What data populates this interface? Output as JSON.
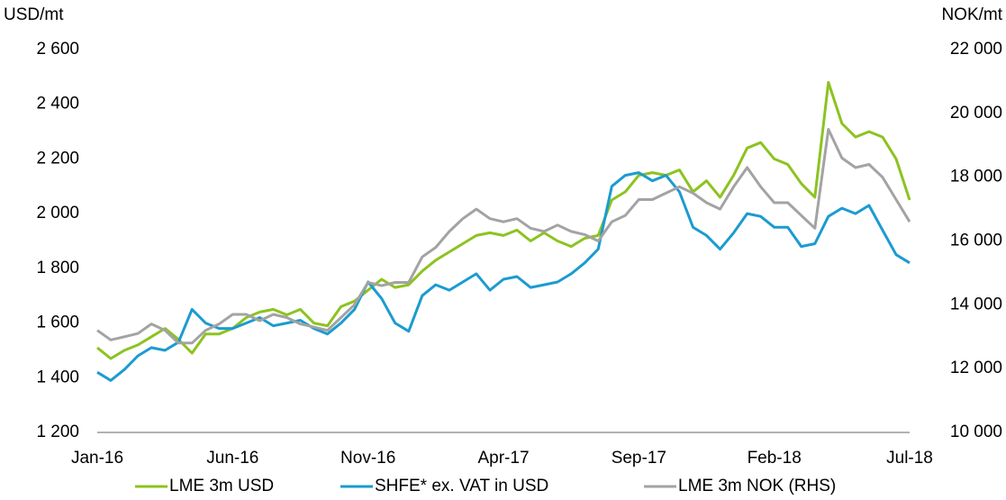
{
  "chart_data": {
    "type": "line",
    "y_label": "USD/mt",
    "y2_label": "NOK/mt",
    "categories": [
      "Jan-16",
      null,
      null,
      null,
      null,
      null,
      null,
      null,
      null,
      null,
      "Jun-16",
      null,
      null,
      null,
      null,
      null,
      null,
      null,
      null,
      null,
      "Nov-16",
      null,
      null,
      null,
      null,
      null,
      null,
      null,
      null,
      null,
      "Apr-17",
      null,
      null,
      null,
      null,
      null,
      null,
      null,
      null,
      null,
      "Sep-17",
      null,
      null,
      null,
      null,
      null,
      null,
      null,
      null,
      null,
      "Feb-18",
      null,
      null,
      null,
      null,
      null,
      null,
      null,
      null,
      null,
      "Jul-18"
    ],
    "ylim": [
      1200,
      2600
    ],
    "yticks": [
      {
        "value": 1200,
        "label": "1 200"
      },
      {
        "value": 1400,
        "label": "1 400"
      },
      {
        "value": 1600,
        "label": "1 600"
      },
      {
        "value": 1800,
        "label": "1 800"
      },
      {
        "value": 2000,
        "label": "2 000"
      },
      {
        "value": 2200,
        "label": "2 200"
      },
      {
        "value": 2400,
        "label": "2 400"
      },
      {
        "value": 2600,
        "label": "2 600"
      }
    ],
    "y2lim": [
      10000,
      22000
    ],
    "y2ticks": [
      {
        "value": 10000,
        "label": "10 000"
      },
      {
        "value": 12000,
        "label": "12 000"
      },
      {
        "value": 14000,
        "label": "14 000"
      },
      {
        "value": 16000,
        "label": "16 000"
      },
      {
        "value": 18000,
        "label": "18 000"
      },
      {
        "value": 20000,
        "label": "20 000"
      },
      {
        "value": 22000,
        "label": "22 000"
      }
    ],
    "grid": false,
    "legend": "bottom",
    "series": [
      {
        "name": "LME 3m USD",
        "color": "#8cc320",
        "axis": "y",
        "values": [
          1510,
          1470,
          1500,
          1520,
          1550,
          1580,
          1540,
          1490,
          1560,
          1560,
          1580,
          1620,
          1640,
          1650,
          1630,
          1650,
          1600,
          1590,
          1660,
          1680,
          1720,
          1760,
          1730,
          1740,
          1790,
          1830,
          1860,
          1890,
          1920,
          1930,
          1920,
          1940,
          1900,
          1930,
          1900,
          1880,
          1910,
          1920,
          2050,
          2080,
          2140,
          2150,
          2140,
          2160,
          2080,
          2120,
          2060,
          2140,
          2240,
          2260,
          2200,
          2180,
          2110,
          2060,
          2480,
          2330,
          2280,
          2300,
          2280,
          2200,
          2050
        ]
      },
      {
        "name": "SHFE* ex. VAT in USD",
        "color": "#1b9bd1",
        "axis": "y",
        "values": [
          1420,
          1390,
          1430,
          1480,
          1510,
          1500,
          1530,
          1650,
          1600,
          1580,
          1580,
          1600,
          1620,
          1590,
          1600,
          1610,
          1580,
          1560,
          1600,
          1650,
          1750,
          1690,
          1600,
          1570,
          1700,
          1740,
          1720,
          1750,
          1780,
          1720,
          1760,
          1770,
          1730,
          1740,
          1750,
          1780,
          1820,
          1870,
          2100,
          2140,
          2150,
          2120,
          2140,
          2080,
          1950,
          1920,
          1870,
          1930,
          2000,
          1990,
          1950,
          1950,
          1880,
          1890,
          1990,
          2020,
          2000,
          2030,
          1940,
          1850,
          1820
        ]
      },
      {
        "name": "LME 3m NOK (RHS)",
        "color": "#a3a3a3",
        "axis": "y2",
        "values": [
          13200,
          12900,
          13000,
          13100,
          13400,
          13200,
          12800,
          12800,
          13200,
          13400,
          13700,
          13700,
          13500,
          13700,
          13600,
          13400,
          13300,
          13200,
          13600,
          14000,
          14700,
          14600,
          14700,
          14700,
          15500,
          15800,
          16300,
          16700,
          17000,
          16700,
          16600,
          16700,
          16400,
          16300,
          16500,
          16300,
          16200,
          16000,
          16600,
          16800,
          17300,
          17300,
          17500,
          17700,
          17500,
          17200,
          17000,
          17700,
          18300,
          17700,
          17200,
          17200,
          16800,
          16400,
          19500,
          18600,
          18300,
          18400,
          18000,
          17300,
          16600
        ]
      }
    ]
  }
}
